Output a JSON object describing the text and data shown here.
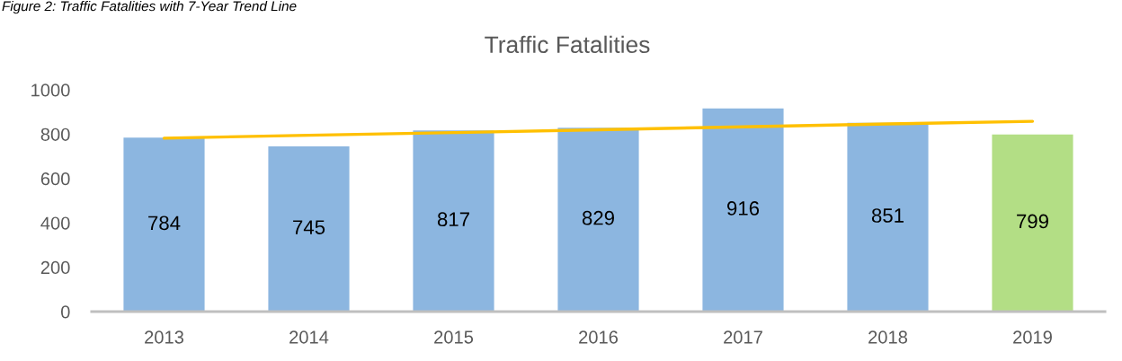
{
  "chart_data": {
    "type": "bar",
    "title": "Traffic Fatalities",
    "annotations": [
      "Figure 2: Traffic Fatalities with 7-Year Trend Line"
    ],
    "categories": [
      "2013",
      "2014",
      "2015",
      "2016",
      "2017",
      "2018",
      "2019"
    ],
    "series": [
      {
        "colors": [
          "#8cb6e0",
          "#8cb6e0",
          "#8cb6e0",
          "#8cb6e0",
          "#8cb6e0",
          "#8cb6e0",
          "#b3de85"
        ],
        "values": [
          784,
          745,
          817,
          829,
          916,
          851,
          799
        ],
        "value_labels": [
          "784",
          "745",
          "817",
          "829",
          "916",
          "851",
          "799"
        ]
      },
      {
        "type": "line",
        "color": "#ffc000",
        "values": [
          782,
          795,
          807,
          820,
          833,
          846,
          858
        ]
      }
    ],
    "ylim": [
      0,
      1000
    ],
    "yticks": [
      0,
      200,
      400,
      600,
      800,
      1000
    ],
    "grid": false
  }
}
